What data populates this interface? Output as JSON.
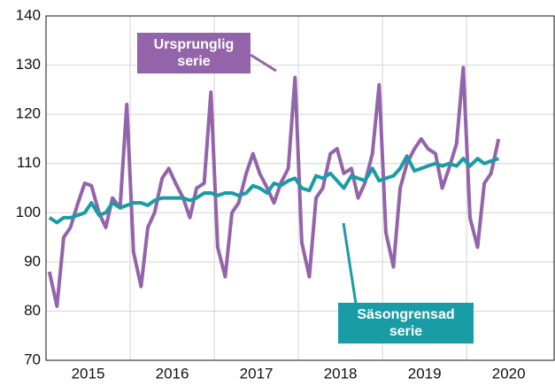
{
  "chart_data": {
    "type": "line",
    "x": [
      2015.04,
      2015.13,
      2015.21,
      2015.29,
      2015.38,
      2015.46,
      2015.54,
      2015.63,
      2015.71,
      2015.79,
      2015.88,
      2015.96,
      2016.04,
      2016.13,
      2016.21,
      2016.29,
      2016.38,
      2016.46,
      2016.54,
      2016.63,
      2016.71,
      2016.79,
      2016.88,
      2016.96,
      2017.04,
      2017.13,
      2017.21,
      2017.29,
      2017.38,
      2017.46,
      2017.54,
      2017.63,
      2017.71,
      2017.79,
      2017.88,
      2017.96,
      2018.04,
      2018.13,
      2018.21,
      2018.29,
      2018.38,
      2018.46,
      2018.54,
      2018.63,
      2018.71,
      2018.79,
      2018.88,
      2018.96,
      2019.04,
      2019.13,
      2019.21,
      2019.29,
      2019.38,
      2019.46,
      2019.54,
      2019.63,
      2019.71,
      2019.79,
      2019.88,
      2019.96,
      2020.04,
      2020.13,
      2020.21,
      2020.29,
      2020.38
    ],
    "series": [
      {
        "name": "Ursprunglig serie",
        "color": "#9364aa",
        "values": [
          88,
          81,
          95,
          97,
          102,
          106,
          105.5,
          100,
          97,
          103,
          101,
          122,
          92,
          85,
          97,
          100,
          107,
          109,
          106,
          103,
          99,
          105,
          106,
          124.5,
          93,
          87,
          100,
          102,
          108,
          112,
          108,
          105,
          102,
          106,
          109,
          127.5,
          94,
          87,
          103,
          105,
          112,
          113,
          108,
          109,
          103,
          106,
          112,
          126,
          96,
          89,
          105,
          110,
          113,
          115,
          113,
          112,
          105,
          109,
          114,
          129.5,
          99,
          93,
          106,
          108,
          115
        ]
      },
      {
        "name": "Säsongrensad serie",
        "color": "#1a9ca6",
        "values": [
          99,
          98,
          99,
          99,
          99.5,
          100,
          102,
          99.5,
          100,
          102,
          101,
          101.5,
          102,
          102,
          101.5,
          102.5,
          103,
          103,
          103,
          103,
          102.5,
          103,
          104,
          104,
          103.5,
          104,
          104,
          103.5,
          104,
          105.5,
          105,
          104,
          106,
          105.5,
          106.5,
          107,
          105,
          104.5,
          107.5,
          107,
          108,
          106.5,
          105,
          107.5,
          107,
          106.5,
          109,
          106.5,
          107,
          107.5,
          109,
          111.5,
          108.5,
          109,
          109.5,
          110,
          109.5,
          110,
          109.5,
          111,
          109.5,
          111,
          110,
          110.5,
          111
        ]
      }
    ],
    "xlim": [
      2015,
      2021.04
    ],
    "xticks": [
      {
        "value": 2015.5,
        "label": "2015"
      },
      {
        "value": 2016.5,
        "label": "2016"
      },
      {
        "value": 2017.5,
        "label": "2017"
      },
      {
        "value": 2018.5,
        "label": "2018"
      },
      {
        "value": 2019.5,
        "label": "2019"
      },
      {
        "value": 2020.5,
        "label": "2020"
      }
    ],
    "xgrid": [
      2016,
      2017,
      2018,
      2019,
      2020
    ],
    "ylim": [
      70,
      140
    ],
    "yticks": [
      70,
      80,
      90,
      100,
      110,
      120,
      130,
      140
    ],
    "grid": true
  }
}
